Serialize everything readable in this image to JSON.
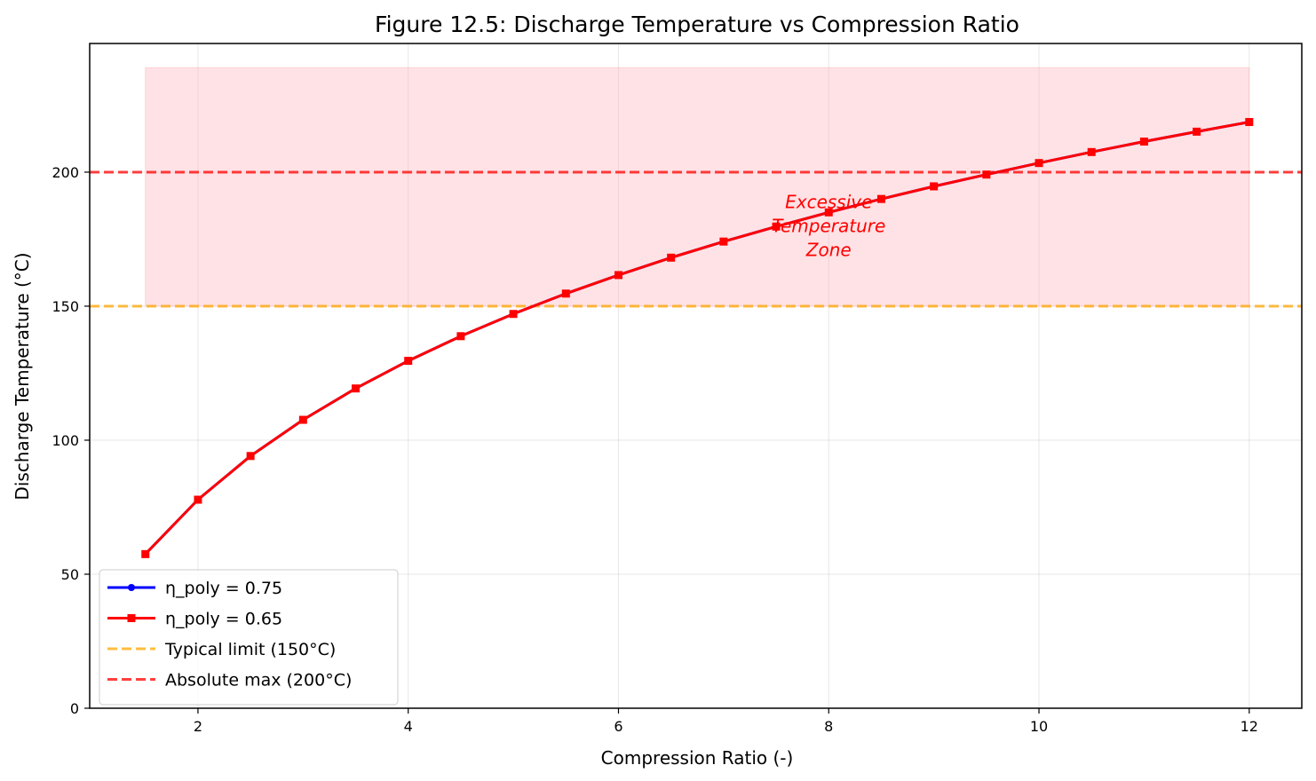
{
  "chart_data": {
    "type": "line",
    "title": "Figure 12.5: Discharge Temperature vs Compression Ratio",
    "xlabel": "Compression Ratio (-)",
    "ylabel": "Discharge Temperature (°C)",
    "xlim": [
      0.97,
      12.5
    ],
    "ylim": [
      0,
      248
    ],
    "x_ticks": [
      2,
      4,
      6,
      8,
      10,
      12
    ],
    "y_ticks": [
      0,
      50,
      100,
      150,
      200
    ],
    "grid": true,
    "legend_position": "lower-left",
    "x": [
      1.5,
      2.0,
      2.5,
      3.0,
      3.5,
      4.0,
      4.5,
      5.0,
      5.5,
      6.0,
      6.5,
      7.0,
      7.5,
      8.0,
      8.5,
      9.0,
      9.5,
      10.0,
      10.5,
      11.0,
      11.5,
      12.0
    ],
    "series": [
      {
        "name": "η_poly = 0.75",
        "color": "#0000ff",
        "marker": "circle",
        "values": [
          57.5,
          77.8,
          94.1,
          107.6,
          119.3,
          129.6,
          138.8,
          147.1,
          154.7,
          161.6,
          168.1,
          174.1,
          179.7,
          185.0,
          190.0,
          194.7,
          199.1,
          203.4,
          207.5,
          211.4,
          215.1,
          218.7
        ]
      },
      {
        "name": "η_poly = 0.65",
        "color": "#ff0000",
        "marker": "square",
        "values": [
          57.5,
          77.8,
          94.1,
          107.6,
          119.3,
          129.6,
          138.8,
          147.1,
          154.7,
          161.6,
          168.1,
          174.1,
          179.7,
          185.0,
          190.0,
          194.7,
          199.1,
          203.4,
          207.5,
          211.4,
          215.1,
          218.7
        ]
      }
    ],
    "reference_lines": [
      {
        "name": "Typical limit (150°C)",
        "y": 150,
        "color": "#ffa500",
        "style": "dashed"
      },
      {
        "name": "Absolute max (200°C)",
        "y": 200,
        "color": "#ff0000",
        "style": "dashed"
      }
    ],
    "shaded_region": {
      "x": [
        1.5,
        12.0
      ],
      "y": [
        150,
        239
      ],
      "color": "#ffb3ba"
    },
    "annotation": {
      "lines": [
        "Excessive",
        "Temperature",
        "Zone"
      ],
      "x": 8.0,
      "y": 180
    }
  }
}
